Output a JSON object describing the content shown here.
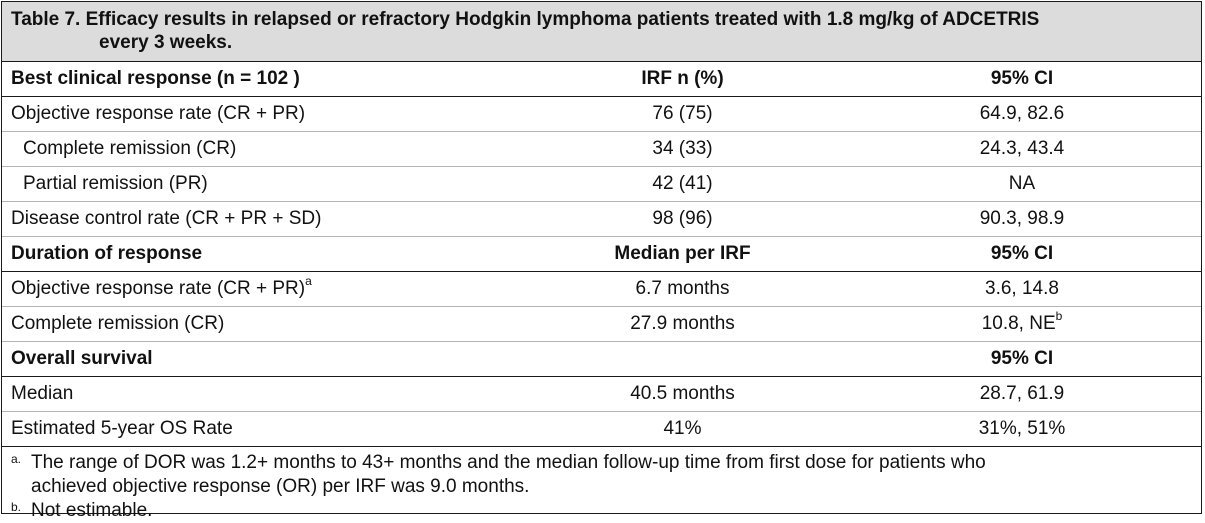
{
  "table": {
    "caption_line1": "Table 7. Efficacy results in relapsed or refractory Hodgkin lymphoma patients treated with 1.8 mg/kg of ADCETRIS",
    "caption_line2": "every 3 weeks.",
    "sections": [
      {
        "header": [
          "Best clinical response (n = 102 )",
          "IRF n (%)",
          "95% CI"
        ],
        "rows": [
          {
            "label": "Objective response rate (CR + PR)",
            "sup": "",
            "value": "76 (75)",
            "ci": "64.9, 82.6",
            "ci_sup": ""
          },
          {
            "label": "Complete remission (CR)",
            "sup": "",
            "value": "34 (33)",
            "ci": "24.3, 43.4",
            "ci_sup": ""
          },
          {
            "label": "Partial remission (PR)",
            "sup": "",
            "value": "42 (41)",
            "ci": "NA",
            "ci_sup": ""
          },
          {
            "label": "Disease control rate (CR + PR + SD)",
            "sup": "",
            "value": "98 (96)",
            "ci": "90.3, 98.9",
            "ci_sup": ""
          }
        ]
      },
      {
        "header": [
          "Duration of response",
          "Median per IRF",
          "95% CI"
        ],
        "rows": [
          {
            "label": "Objective response rate (CR + PR)",
            "sup": "a",
            "value": "6.7 months",
            "ci": "3.6, 14.8",
            "ci_sup": ""
          },
          {
            "label": "Complete remission (CR)",
            "sup": "",
            "value": "27.9 months",
            "ci": "10.8, NE",
            "ci_sup": "b"
          }
        ]
      },
      {
        "header": [
          "Overall survival",
          "",
          "95% CI"
        ],
        "rows": [
          {
            "label": "Median",
            "sup": "",
            "value": "40.5 months",
            "ci": "28.7, 61.9",
            "ci_sup": ""
          },
          {
            "label": "Estimated 5-year OS Rate",
            "sup": "",
            "value": "41%",
            "ci": "31%, 51%",
            "ci_sup": ""
          }
        ]
      }
    ],
    "footnotes": [
      {
        "mark": "a.",
        "line1": "The range of DOR was 1.2+ months to 43+ months and the median follow-up time from first dose for patients who",
        "line2": "achieved objective response (OR) per IRF was 9.0 months."
      },
      {
        "mark": "b.",
        "line1": "Not estimable.",
        "line2": ""
      }
    ]
  }
}
